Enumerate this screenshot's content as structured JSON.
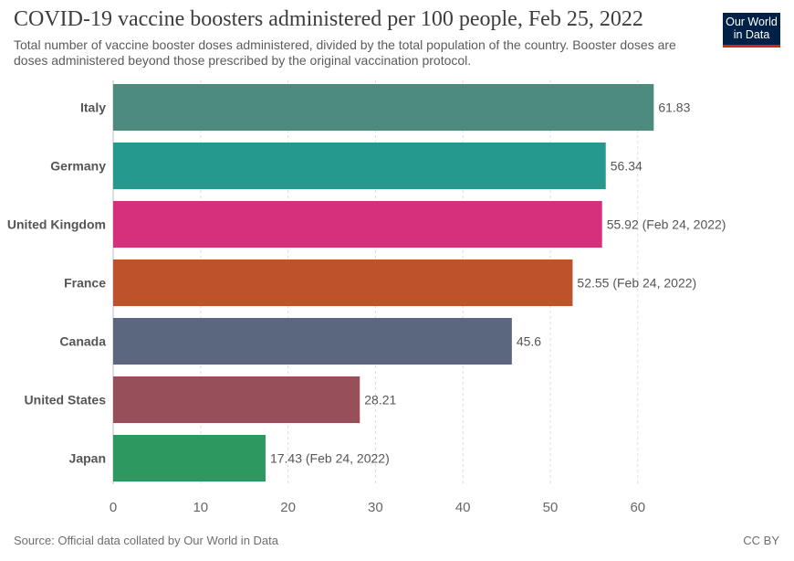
{
  "title": "COVID-19 vaccine boosters administered per 100 people, Feb 25, 2022",
  "subtitle": "Total number of vaccine booster doses administered, divided by the total population of the country. Booster doses are doses administered beyond those prescribed by the original vaccination protocol.",
  "logo": {
    "line1": "Our World",
    "line2": "in Data"
  },
  "source": "Source: Official data collated by Our World in Data",
  "license": "CC BY",
  "chart_data": {
    "type": "bar",
    "orientation": "horizontal",
    "categories": [
      "Italy",
      "Germany",
      "United Kingdom",
      "France",
      "Canada",
      "United States",
      "Japan"
    ],
    "values": [
      61.83,
      56.34,
      55.92,
      52.55,
      45.6,
      28.21,
      17.43
    ],
    "data_labels": [
      "61.83",
      "56.34",
      "55.92 (Feb 24, 2022)",
      "52.55 (Feb 24, 2022)",
      "45.6",
      "28.21",
      "17.43 (Feb 24, 2022)"
    ],
    "colors": [
      "#4c8b7d",
      "#26998f",
      "#d6307d",
      "#bd522b",
      "#5a677f",
      "#97505a",
      "#2d9961"
    ],
    "xlim": [
      0,
      60
    ],
    "xticks": [
      0,
      10,
      20,
      30,
      40,
      50,
      60
    ],
    "grid": true
  }
}
